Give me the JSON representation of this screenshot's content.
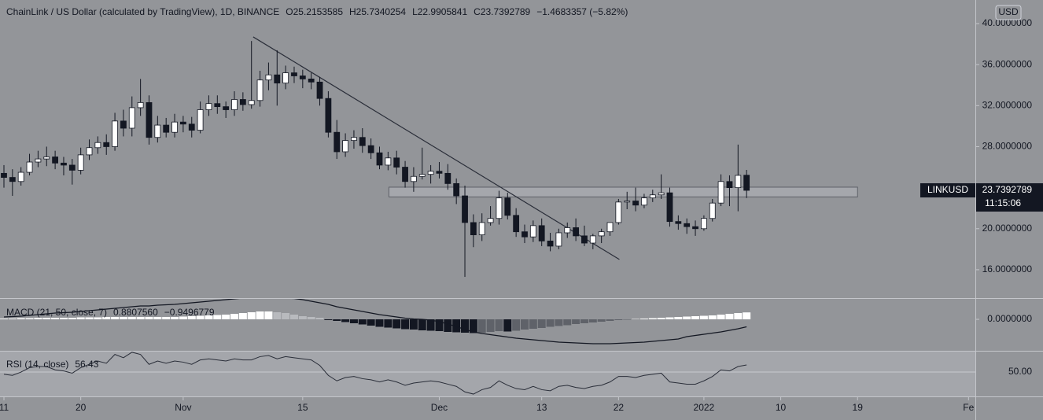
{
  "chart_data": {
    "type": "candlestick",
    "title": "ChainLink / US Dollar (calculated by TradingView), 1D, BINANCE",
    "ohlc_legend": [
      "O25.2153585",
      "H25.7340254",
      "L22.9905841",
      "C23.7392789",
      "−1.4683357 (−5.82%)"
    ],
    "currency": "USD",
    "symbol": "LINKUSD",
    "countdown": "11:15:06",
    "up_color": "#ffffff",
    "down_color": "#131722",
    "x": [
      0,
      1,
      2,
      3,
      4,
      5,
      6,
      7,
      8,
      9,
      10,
      11,
      12,
      13,
      14,
      15,
      16,
      17,
      18,
      19,
      20,
      21,
      22,
      23,
      24,
      25,
      26,
      27,
      28,
      29,
      30,
      31,
      32,
      33,
      34,
      35,
      36,
      37,
      38,
      39,
      40,
      41,
      42,
      43,
      44,
      45,
      46,
      47,
      48,
      49,
      50,
      51,
      52,
      53,
      54,
      55,
      56,
      57,
      58,
      59,
      60,
      61,
      62,
      63,
      64,
      65,
      66,
      67,
      68,
      69,
      70,
      71,
      72,
      73,
      74,
      75,
      76,
      77,
      78,
      79,
      80,
      81,
      82,
      83,
      84,
      85,
      86,
      87
    ],
    "open": [
      25.4,
      25.0,
      24.6,
      25.5,
      26.5,
      26.8,
      27.0,
      26.4,
      26.2,
      25.7,
      27.2,
      27.9,
      28.4,
      28.0,
      30.5,
      29.8,
      31.8,
      32.3,
      28.9,
      30.1,
      29.4,
      30.4,
      30.2,
      29.6,
      31.6,
      32.2,
      31.9,
      31.6,
      32.6,
      32.1,
      32.5,
      34.5,
      35.0,
      34.2,
      35.2,
      34.9,
      34.6,
      34.3,
      32.7,
      29.4,
      27.5,
      28.6,
      28.9,
      28.1,
      27.4,
      26.2,
      26.9,
      26.0,
      24.6,
      25.1,
      25.3,
      25.6,
      25.4,
      24.4,
      23.2,
      20.6,
      19.4,
      20.6,
      21.0,
      23.0,
      21.3,
      19.7,
      19.2,
      20.3,
      18.8,
      18.3,
      19.6,
      20.1,
      19.3,
      18.6,
      19.3,
      19.7,
      20.6,
      22.6,
      22.7,
      22.3,
      23.0,
      23.3,
      23.5,
      20.7,
      20.5,
      20.2,
      20.0,
      21.0,
      22.5,
      24.6,
      24.0,
      25.2153585
    ],
    "high": [
      26.2,
      25.8,
      26.0,
      27.3,
      27.6,
      28.0,
      27.6,
      27.0,
      26.8,
      27.9,
      28.7,
      29.0,
      29.2,
      31.3,
      31.6,
      32.9,
      34.6,
      33.0,
      31.0,
      30.8,
      31.2,
      31.0,
      30.9,
      32.4,
      33.0,
      33.0,
      32.4,
      33.4,
      33.3,
      38.3,
      35.4,
      36.2,
      37.4,
      35.9,
      35.8,
      35.5,
      35.2,
      34.8,
      33.4,
      30.6,
      29.3,
      29.6,
      29.8,
      28.8,
      28.0,
      27.5,
      27.6,
      26.6,
      26.0,
      27.9,
      26.2,
      26.5,
      26.3,
      24.9,
      24.2,
      21.4,
      21.5,
      22.2,
      23.7,
      23.5,
      22.0,
      20.4,
      20.8,
      21.0,
      19.6,
      20.0,
      20.6,
      21.0,
      20.3,
      19.5,
      20.0,
      20.5,
      22.9,
      23.6,
      24.0,
      23.4,
      23.8,
      25.3,
      24.0,
      21.3,
      21.0,
      20.8,
      21.3,
      22.9,
      25.3,
      25.2,
      28.2,
      25.7340254
    ],
    "low": [
      24.0,
      23.2,
      24.2,
      25.2,
      26.0,
      26.1,
      25.8,
      25.2,
      24.3,
      25.3,
      26.7,
      27.3,
      27.2,
      27.6,
      29.0,
      29.0,
      31.0,
      28.2,
      28.4,
      28.9,
      28.9,
      29.4,
      28.9,
      29.3,
      31.0,
      31.2,
      30.8,
      31.0,
      31.5,
      31.7,
      31.9,
      33.5,
      32.0,
      33.6,
      34.2,
      33.7,
      33.6,
      32.0,
      28.9,
      26.8,
      27.0,
      27.8,
      27.4,
      26.8,
      25.8,
      25.7,
      25.3,
      24.0,
      23.6,
      24.8,
      24.4,
      24.9,
      23.8,
      22.4,
      15.3,
      18.2,
      18.8,
      20.3,
      20.4,
      20.9,
      19.2,
      18.6,
      18.7,
      18.3,
      17.8,
      18.0,
      19.1,
      18.8,
      18.3,
      18.0,
      18.6,
      19.3,
      20.4,
      21.9,
      21.7,
      22.0,
      22.6,
      22.9,
      20.2,
      19.9,
      19.5,
      19.3,
      19.8,
      20.7,
      22.2,
      22.2,
      21.7,
      22.9905841
    ],
    "close": [
      25.0,
      24.6,
      25.5,
      26.5,
      26.8,
      27.0,
      26.4,
      26.2,
      25.7,
      27.2,
      27.9,
      28.4,
      28.0,
      30.5,
      29.8,
      31.8,
      32.3,
      28.9,
      30.1,
      29.4,
      30.4,
      30.2,
      29.6,
      31.6,
      32.2,
      31.9,
      31.6,
      32.6,
      32.1,
      32.5,
      34.5,
      35.0,
      34.2,
      35.2,
      34.9,
      34.6,
      34.3,
      32.7,
      29.4,
      27.5,
      28.6,
      28.9,
      28.1,
      27.4,
      26.2,
      26.9,
      26.0,
      24.6,
      25.1,
      25.3,
      25.6,
      25.4,
      24.4,
      23.2,
      20.6,
      19.4,
      20.6,
      21.0,
      23.0,
      21.3,
      19.7,
      19.2,
      20.3,
      18.8,
      18.3,
      19.6,
      20.1,
      19.3,
      18.6,
      19.3,
      19.7,
      20.6,
      22.6,
      22.7,
      22.3,
      23.0,
      23.3,
      23.5,
      20.7,
      20.5,
      20.2,
      20.0,
      21.0,
      22.5,
      24.6,
      24.0,
      25.2,
      23.7392789
    ],
    "xlim": [
      -0.46,
      113.8
    ],
    "xticks": [
      {
        "value": 0,
        "label": "11"
      },
      {
        "value": 9,
        "label": "20"
      },
      {
        "value": 21,
        "label": "Nov"
      },
      {
        "value": 35,
        "label": "15"
      },
      {
        "value": 51,
        "label": "Dec"
      },
      {
        "value": 63,
        "label": "13"
      },
      {
        "value": 72,
        "label": "22"
      },
      {
        "value": 82,
        "label": "2022"
      },
      {
        "value": 91,
        "label": "10"
      },
      {
        "value": 100,
        "label": "19"
      },
      {
        "value": 113,
        "label": "Fe"
      }
    ],
    "ylim": [
      13.31,
      42.3
    ],
    "yticks": [
      {
        "value": 40,
        "label": "40.0000000"
      },
      {
        "value": 36,
        "label": "36.0000000"
      },
      {
        "value": 32,
        "label": "32.0000000"
      },
      {
        "value": 28,
        "label": "28.0000000"
      },
      {
        "value": 20,
        "label": "20.0000000"
      },
      {
        "value": 16,
        "label": "16.0000000"
      }
    ],
    "trendline": {
      "x": [
        29.2,
        72.1
      ],
      "y": [
        38.7,
        17.0
      ]
    },
    "zone": {
      "x": [
        45.1,
        100
      ],
      "y": [
        23.1,
        24.05
      ]
    },
    "macd": {
      "title": "MACD (21, 50, close, 7)",
      "legend_values": [
        "0.8807560",
        "−0.9496779"
      ],
      "hist": [
        0.1,
        0.1,
        0.15,
        0.15,
        0.2,
        0.2,
        0.2,
        0.2,
        0.2,
        0.25,
        0.25,
        0.25,
        0.3,
        0.3,
        0.3,
        0.3,
        0.3,
        0.3,
        0.3,
        0.3,
        0.3,
        0.35,
        0.4,
        0.45,
        0.5,
        0.55,
        0.6,
        0.7,
        0.8,
        0.9,
        1.0,
        1.0,
        0.9,
        0.8,
        0.6,
        0.4,
        0.3,
        0.2,
        -0.1,
        -0.2,
        -0.35,
        -0.5,
        -0.65,
        -0.8,
        -0.95,
        -1.05,
        -1.15,
        -1.25,
        -1.3,
        -1.4,
        -1.45,
        -1.5,
        -1.6,
        -1.65,
        -1.7,
        -1.75,
        -1.7,
        -1.6,
        -1.5,
        -1.55,
        -1.45,
        -1.3,
        -1.2,
        -1.1,
        -0.95,
        -0.85,
        -0.75,
        -0.6,
        -0.5,
        -0.4,
        -0.3,
        -0.2,
        -0.1,
        -0.05,
        0.05,
        0.1,
        0.15,
        0.2,
        0.25,
        0.3,
        0.35,
        0.4,
        0.45,
        0.5,
        0.6,
        0.7,
        0.8,
        0.880756
      ],
      "macd": [
        0.3,
        0.35,
        0.4,
        0.5,
        0.6,
        0.7,
        0.8,
        0.85,
        0.9,
        1.0,
        1.1,
        1.2,
        1.3,
        1.4,
        1.5,
        1.6,
        1.7,
        1.7,
        1.8,
        1.85,
        1.9,
        2.0,
        2.1,
        2.2,
        2.3,
        2.4,
        2.5,
        2.6,
        2.7,
        2.75,
        2.8,
        2.8,
        2.75,
        2.7,
        2.65,
        2.5,
        2.3,
        2.1,
        1.9,
        1.6,
        1.4,
        1.2,
        1.0,
        0.8,
        0.6,
        0.45,
        0.3,
        0.15,
        0.05,
        0.0,
        -0.1,
        -0.3,
        -0.6,
        -0.9,
        -1.3,
        -1.6,
        -1.8,
        -1.95,
        -2.1,
        -2.25,
        -2.4,
        -2.5,
        -2.6,
        -2.7,
        -2.8,
        -2.9,
        -2.95,
        -3.0,
        -3.05,
        -3.1,
        -3.1,
        -3.1,
        -3.05,
        -3.0,
        -2.95,
        -2.9,
        -2.8,
        -2.7,
        -2.6,
        -2.5,
        -2.2,
        -2.05,
        -1.9,
        -1.75,
        -1.6,
        -1.4,
        -1.2,
        -0.9496779
      ],
      "ylim": [
        -3.9,
        2.6
      ],
      "yticks": [
        {
          "value": 0,
          "label": "0.0000000"
        }
      ]
    },
    "rsi": {
      "title": "RSI (14, close)",
      "values": [
        48,
        47,
        50,
        54,
        55,
        55,
        52,
        51,
        49,
        54,
        57,
        60,
        58,
        66,
        63,
        68,
        66,
        57,
        60,
        58,
        60,
        59,
        57,
        61,
        62,
        61,
        60,
        62,
        61,
        61,
        64,
        65,
        62,
        64,
        63,
        62,
        61,
        56,
        47,
        42,
        45,
        46,
        44,
        43,
        41,
        43,
        41,
        38,
        40,
        41,
        42,
        41,
        39,
        37,
        32,
        30,
        34,
        36,
        42,
        38,
        35,
        34,
        37,
        34,
        33,
        37,
        38,
        36,
        35,
        37,
        38,
        41,
        46,
        46,
        45,
        47,
        48,
        49,
        41,
        40,
        39,
        39,
        42,
        46,
        52,
        51,
        55,
        56.43
      ],
      "ylim": [
        28.6,
        68.6
      ],
      "yticks": [
        {
          "value": 50,
          "label": "50.00"
        }
      ]
    }
  }
}
